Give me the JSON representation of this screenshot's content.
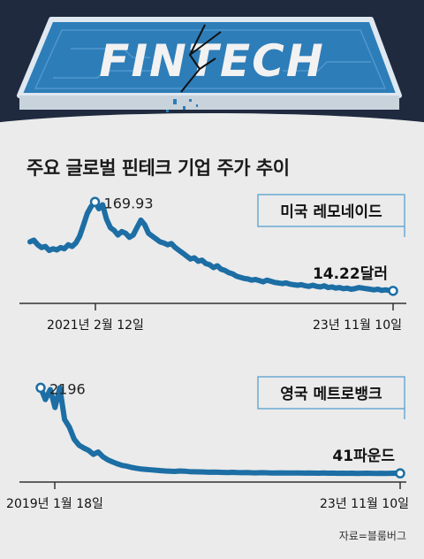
{
  "banner": {
    "text": "FINTECH"
  },
  "title": "주요 글로벌 핀테크 기업 주가 추이",
  "source": "자료=블룸버그",
  "colors": {
    "line": "#1c6ea4",
    "banner": "#2d7db8",
    "background": "#ebebeb",
    "border": "#6aa9d1"
  },
  "chart_data": [
    {
      "type": "line",
      "title": "미국 레모네이드",
      "x_start_label": "2021년 2월 12일",
      "x_end_label": "23년 11월 10일",
      "peak_label": "169.93",
      "end_label": "14.22달러",
      "peak_value": 169.93,
      "end_value": 14.22,
      "ylim": [
        0,
        175
      ],
      "values": [
        100,
        103,
        95,
        90,
        92,
        85,
        88,
        86,
        90,
        88,
        95,
        92,
        98,
        110,
        130,
        150,
        162,
        169.93,
        158,
        165,
        140,
        125,
        120,
        112,
        118,
        115,
        108,
        112,
        125,
        138,
        130,
        115,
        110,
        105,
        100,
        98,
        95,
        97,
        90,
        85,
        80,
        75,
        70,
        72,
        66,
        68,
        62,
        60,
        55,
        58,
        52,
        50,
        46,
        44,
        40,
        38,
        36,
        35,
        33,
        34,
        32,
        30,
        33,
        31,
        29,
        28,
        27,
        28,
        26,
        25,
        24,
        25,
        23,
        22,
        24,
        22,
        21,
        23,
        20,
        21,
        19,
        20,
        18,
        19,
        17,
        18,
        20,
        19,
        18,
        17,
        16,
        17,
        15,
        16,
        15,
        14.22
      ]
    },
    {
      "type": "line",
      "title": "영국 메트로뱅크",
      "x_start_label": "2019년 1월 18일",
      "x_end_label": "23년 11월 10일",
      "peak_label": "2196",
      "end_label": "41파운드",
      "peak_value": 2196,
      "end_value": 41,
      "ylim": [
        0,
        2250
      ],
      "values": [
        2196,
        1900,
        2150,
        1700,
        2196,
        1400,
        1200,
        900,
        750,
        680,
        620,
        520,
        580,
        460,
        380,
        330,
        280,
        240,
        220,
        190,
        170,
        150,
        140,
        130,
        120,
        110,
        100,
        95,
        90,
        100,
        95,
        85,
        80,
        78,
        75,
        70,
        72,
        68,
        65,
        62,
        66,
        60,
        58,
        62,
        56,
        54,
        58,
        55,
        52,
        50,
        54,
        50,
        48,
        52,
        49,
        47,
        50,
        46,
        45,
        48,
        44,
        46,
        43,
        45,
        42,
        44,
        41,
        43,
        45,
        42,
        41,
        43,
        40,
        42,
        44,
        41
      ]
    }
  ]
}
